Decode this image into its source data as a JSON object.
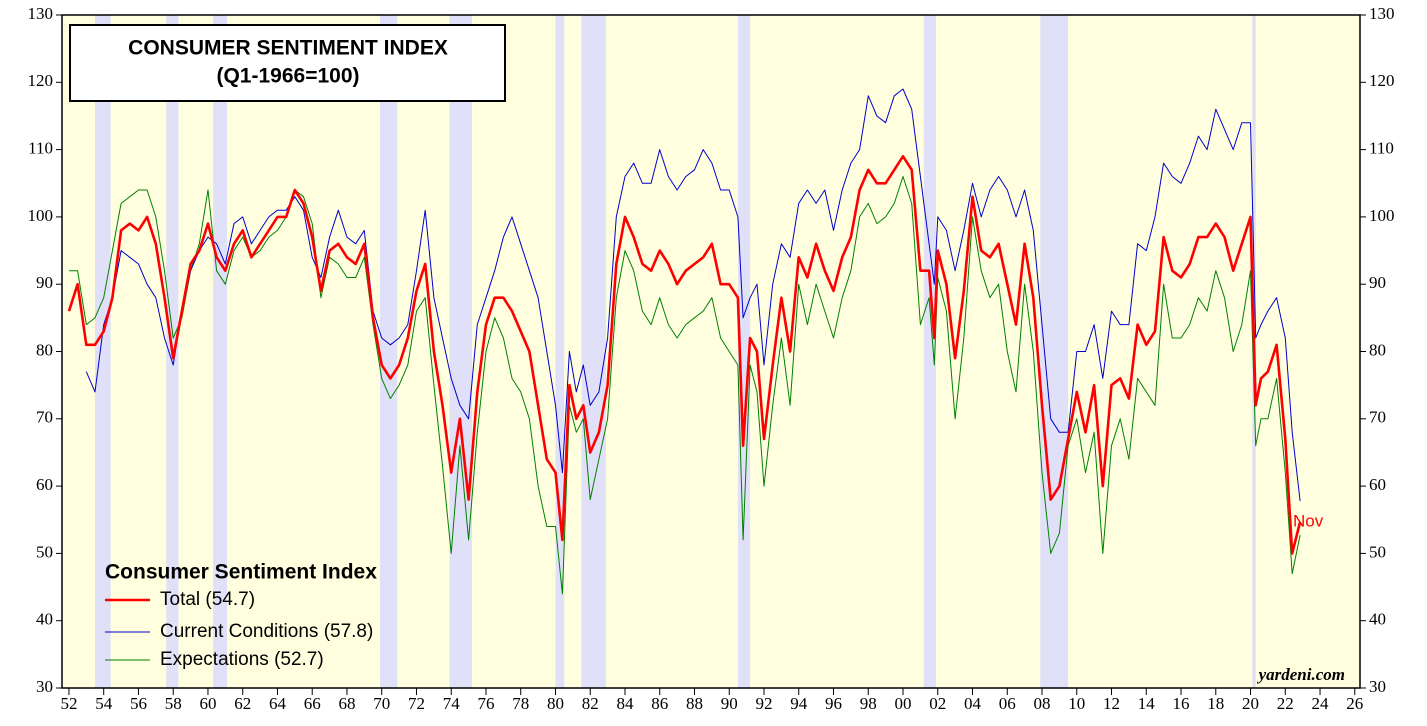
{
  "chart_data": {
    "type": "line",
    "title": "CONSUMER SENTIMENT INDEX",
    "subtitle": "(Q1-1966=100)",
    "legend_title": "Consumer Sentiment Index",
    "annotation": "Nov",
    "source": "yardeni.com",
    "x": [
      1952.0,
      1952.5,
      1953.0,
      1953.5,
      1954.0,
      1954.5,
      1955.0,
      1955.5,
      1956.0,
      1956.5,
      1957.0,
      1957.5,
      1958.0,
      1958.5,
      1959.0,
      1959.5,
      1960.0,
      1960.5,
      1961.0,
      1961.5,
      1962.0,
      1962.5,
      1963.0,
      1963.5,
      1964.0,
      1964.5,
      1965.0,
      1965.5,
      1966.0,
      1966.5,
      1967.0,
      1967.5,
      1968.0,
      1968.5,
      1969.0,
      1969.5,
      1970.0,
      1970.5,
      1971.0,
      1971.5,
      1972.0,
      1972.5,
      1973.0,
      1973.5,
      1974.0,
      1974.5,
      1975.0,
      1975.5,
      1976.0,
      1976.5,
      1977.0,
      1977.5,
      1978.0,
      1978.5,
      1979.0,
      1979.5,
      1980.0,
      1980.4,
      1980.8,
      1981.2,
      1981.6,
      1982.0,
      1982.5,
      1983.0,
      1983.5,
      1984.0,
      1984.5,
      1985.0,
      1985.5,
      1986.0,
      1986.5,
      1987.0,
      1987.5,
      1988.0,
      1988.5,
      1989.0,
      1989.5,
      1990.0,
      1990.5,
      1990.8,
      1991.2,
      1991.6,
      1992.0,
      1992.5,
      1993.0,
      1993.5,
      1994.0,
      1994.5,
      1995.0,
      1995.5,
      1996.0,
      1996.5,
      1997.0,
      1997.5,
      1998.0,
      1998.5,
      1999.0,
      1999.5,
      2000.0,
      2000.5,
      2001.0,
      2001.5,
      2001.8,
      2002.0,
      2002.5,
      2003.0,
      2003.5,
      2004.0,
      2004.5,
      2005.0,
      2005.5,
      2006.0,
      2006.5,
      2007.0,
      2007.5,
      2008.0,
      2008.5,
      2009.0,
      2009.5,
      2010.0,
      2010.5,
      2011.0,
      2011.5,
      2012.0,
      2012.5,
      2013.0,
      2013.5,
      2014.0,
      2014.5,
      2015.0,
      2015.5,
      2016.0,
      2016.5,
      2017.0,
      2017.5,
      2018.0,
      2018.5,
      2019.0,
      2019.5,
      2020.0,
      2020.3,
      2020.6,
      2021.0,
      2021.5,
      2022.0,
      2022.4,
      2022.85
    ],
    "series": [
      {
        "name": "Total (54.7)",
        "color": "#ff0000",
        "values": [
          86,
          90,
          81,
          81,
          83,
          88,
          98,
          99,
          98,
          100,
          96,
          88,
          79,
          86,
          93,
          95,
          99,
          94,
          92,
          96,
          98,
          94,
          96,
          98,
          100,
          100,
          104,
          102,
          97,
          89,
          95,
          96,
          94,
          93,
          96,
          85,
          78,
          76,
          78,
          82,
          89,
          93,
          80,
          72,
          62,
          70,
          58,
          74,
          84,
          88,
          88,
          86,
          83,
          80,
          72,
          64,
          62,
          52,
          75,
          70,
          72,
          65,
          68,
          75,
          93,
          100,
          97,
          93,
          92,
          95,
          93,
          90,
          92,
          93,
          94,
          96,
          90,
          90,
          88,
          66,
          82,
          80,
          67,
          78,
          88,
          80,
          94,
          91,
          96,
          92,
          89,
          94,
          97,
          104,
          107,
          105,
          105,
          107,
          109,
          107,
          92,
          92,
          82,
          95,
          90,
          79,
          89,
          103,
          95,
          94,
          96,
          90,
          84,
          96,
          88,
          72,
          58,
          60,
          67,
          74,
          68,
          75,
          60,
          75,
          76,
          73,
          84,
          81,
          83,
          97,
          92,
          91,
          93,
          97,
          97,
          99,
          97,
          92,
          96,
          100,
          72,
          76,
          77,
          81,
          67,
          50,
          54.7
        ]
      },
      {
        "name": "Current Conditions (57.8)",
        "color": "#0000cc",
        "values": [
          null,
          null,
          77,
          74,
          84,
          88,
          95,
          94,
          93,
          90,
          88,
          82,
          78,
          86,
          92,
          95,
          97,
          96,
          93,
          99,
          100,
          96,
          98,
          100,
          101,
          101,
          103,
          101,
          94,
          91,
          97,
          101,
          97,
          96,
          98,
          86,
          82,
          81,
          82,
          84,
          92,
          101,
          88,
          82,
          76,
          72,
          70,
          84,
          88,
          92,
          97,
          100,
          96,
          92,
          88,
          80,
          72,
          62,
          80,
          74,
          78,
          72,
          74,
          82,
          100,
          106,
          108,
          105,
          105,
          110,
          106,
          104,
          106,
          107,
          110,
          108,
          104,
          104,
          100,
          85,
          88,
          90,
          78,
          90,
          96,
          94,
          102,
          104,
          102,
          104,
          98,
          104,
          108,
          110,
          118,
          115,
          114,
          118,
          119,
          116,
          106,
          96,
          90,
          100,
          98,
          92,
          98,
          105,
          100,
          104,
          106,
          104,
          100,
          104,
          98,
          84,
          70,
          68,
          68,
          80,
          80,
          84,
          76,
          86,
          84,
          84,
          96,
          95,
          100,
          108,
          106,
          105,
          108,
          112,
          110,
          116,
          113,
          110,
          114,
          114,
          82,
          84,
          86,
          88,
          82,
          68,
          57.8
        ]
      },
      {
        "name": "Expectations (52.7)",
        "color": "#008000",
        "values": [
          92,
          92,
          84,
          85,
          88,
          95,
          102,
          103,
          104,
          104,
          100,
          92,
          82,
          85,
          92,
          96,
          104,
          92,
          90,
          95,
          97,
          94,
          95,
          97,
          98,
          100,
          104,
          103,
          99,
          88,
          94,
          93,
          91,
          91,
          94,
          84,
          76,
          73,
          75,
          78,
          86,
          88,
          75,
          63,
          50,
          66,
          52,
          68,
          80,
          85,
          82,
          76,
          74,
          70,
          60,
          54,
          54,
          44,
          72,
          68,
          70,
          58,
          64,
          70,
          88,
          95,
          92,
          86,
          84,
          88,
          84,
          82,
          84,
          85,
          86,
          88,
          82,
          80,
          78,
          52,
          78,
          74,
          60,
          72,
          82,
          72,
          90,
          84,
          90,
          86,
          82,
          88,
          92,
          100,
          102,
          99,
          100,
          102,
          106,
          102,
          84,
          88,
          78,
          91,
          86,
          70,
          82,
          100,
          92,
          88,
          90,
          80,
          74,
          90,
          80,
          62,
          50,
          53,
          66,
          70,
          62,
          68,
          50,
          66,
          70,
          64,
          76,
          74,
          72,
          90,
          82,
          82,
          84,
          88,
          86,
          92,
          88,
          80,
          84,
          92,
          66,
          70,
          70,
          76,
          62,
          47,
          52.7
        ]
      }
    ],
    "recessions": [
      [
        1953.5,
        1954.4
      ],
      [
        1957.6,
        1958.3
      ],
      [
        1960.3,
        1961.1
      ],
      [
        1969.9,
        1970.9
      ],
      [
        1973.9,
        1975.2
      ],
      [
        1980.0,
        1980.5
      ],
      [
        1981.5,
        1982.9
      ],
      [
        1990.5,
        1991.2
      ],
      [
        2001.2,
        2001.9
      ],
      [
        2007.9,
        2009.5
      ],
      [
        2020.1,
        2020.3
      ]
    ],
    "xlim": [
      1951.6,
      2026.3
    ],
    "xticks": [
      {
        "value": 1952,
        "label": "52"
      },
      {
        "value": 1954,
        "label": "54"
      },
      {
        "value": 1956,
        "label": "56"
      },
      {
        "value": 1958,
        "label": "58"
      },
      {
        "value": 1960,
        "label": "60"
      },
      {
        "value": 1962,
        "label": "62"
      },
      {
        "value": 1964,
        "label": "64"
      },
      {
        "value": 1966,
        "label": "66"
      },
      {
        "value": 1968,
        "label": "68"
      },
      {
        "value": 1970,
        "label": "70"
      },
      {
        "value": 1972,
        "label": "72"
      },
      {
        "value": 1974,
        "label": "74"
      },
      {
        "value": 1976,
        "label": "76"
      },
      {
        "value": 1978,
        "label": "78"
      },
      {
        "value": 1980,
        "label": "80"
      },
      {
        "value": 1982,
        "label": "82"
      },
      {
        "value": 1984,
        "label": "84"
      },
      {
        "value": 1986,
        "label": "86"
      },
      {
        "value": 1988,
        "label": "88"
      },
      {
        "value": 1990,
        "label": "90"
      },
      {
        "value": 1992,
        "label": "92"
      },
      {
        "value": 1994,
        "label": "94"
      },
      {
        "value": 1996,
        "label": "96"
      },
      {
        "value": 1998,
        "label": "98"
      },
      {
        "value": 2000,
        "label": "00"
      },
      {
        "value": 2002,
        "label": "02"
      },
      {
        "value": 2004,
        "label": "04"
      },
      {
        "value": 2006,
        "label": "06"
      },
      {
        "value": 2008,
        "label": "08"
      },
      {
        "value": 2010,
        "label": "10"
      },
      {
        "value": 2012,
        "label": "12"
      },
      {
        "value": 2014,
        "label": "14"
      },
      {
        "value": 2016,
        "label": "16"
      },
      {
        "value": 2018,
        "label": "18"
      },
      {
        "value": 2020,
        "label": "20"
      },
      {
        "value": 2022,
        "label": "22"
      },
      {
        "value": 2024,
        "label": "24"
      },
      {
        "value": 2026,
        "label": "26"
      }
    ],
    "ylim": [
      30,
      130
    ],
    "yticks": [
      30,
      40,
      50,
      60,
      70,
      80,
      90,
      100,
      110,
      120,
      130
    ]
  }
}
